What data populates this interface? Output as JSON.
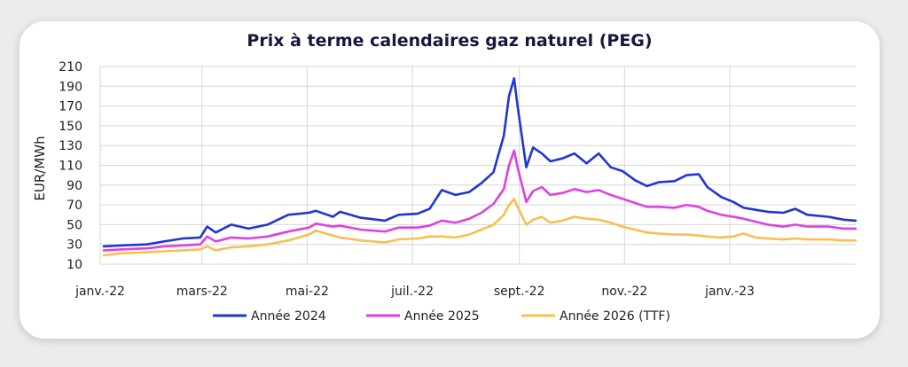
{
  "chart_data": {
    "type": "line",
    "title": "Prix à terme calendaires gaz naturel (PEG)",
    "ylabel": "EUR/MWh",
    "xlabel": "",
    "ylim": [
      10,
      210
    ],
    "yticks": [
      10,
      30,
      50,
      70,
      90,
      110,
      130,
      150,
      170,
      190,
      210
    ],
    "xlim": [
      "2022-01-01",
      "2023-03-15"
    ],
    "xticks": [
      {
        "label": "janv.-22",
        "date": "2022-01-01"
      },
      {
        "label": "mars-22",
        "date": "2022-03-01"
      },
      {
        "label": "mai-22",
        "date": "2022-05-01"
      },
      {
        "label": "juil.-22",
        "date": "2022-07-01"
      },
      {
        "label": "sept.-22",
        "date": "2022-09-01"
      },
      {
        "label": "nov.-22",
        "date": "2022-11-01"
      },
      {
        "label": "janv.-23",
        "date": "2023-01-01"
      }
    ],
    "grid": true,
    "legend_position": "bottom",
    "series": [
      {
        "name": "Année 2024",
        "color": "#1f35d4",
        "points": [
          [
            "2022-01-03",
            28
          ],
          [
            "2022-01-14",
            29
          ],
          [
            "2022-01-28",
            30
          ],
          [
            "2022-02-07",
            33
          ],
          [
            "2022-02-18",
            36
          ],
          [
            "2022-02-28",
            37
          ],
          [
            "2022-03-04",
            48
          ],
          [
            "2022-03-09",
            42
          ],
          [
            "2022-03-18",
            50
          ],
          [
            "2022-03-28",
            46
          ],
          [
            "2022-04-08",
            50
          ],
          [
            "2022-04-20",
            60
          ],
          [
            "2022-05-02",
            62
          ],
          [
            "2022-05-06",
            64
          ],
          [
            "2022-05-16",
            58
          ],
          [
            "2022-05-20",
            63
          ],
          [
            "2022-06-01",
            57
          ],
          [
            "2022-06-15",
            54
          ],
          [
            "2022-06-23",
            60
          ],
          [
            "2022-07-04",
            61
          ],
          [
            "2022-07-11",
            66
          ],
          [
            "2022-07-18",
            85
          ],
          [
            "2022-07-26",
            80
          ],
          [
            "2022-08-03",
            83
          ],
          [
            "2022-08-10",
            92
          ],
          [
            "2022-08-17",
            103
          ],
          [
            "2022-08-23",
            140
          ],
          [
            "2022-08-26",
            180
          ],
          [
            "2022-08-29",
            198
          ],
          [
            "2022-08-31",
            170
          ],
          [
            "2022-09-05",
            108
          ],
          [
            "2022-09-09",
            128
          ],
          [
            "2022-09-14",
            122
          ],
          [
            "2022-09-19",
            114
          ],
          [
            "2022-09-26",
            117
          ],
          [
            "2022-10-03",
            122
          ],
          [
            "2022-10-10",
            112
          ],
          [
            "2022-10-17",
            122
          ],
          [
            "2022-10-24",
            108
          ],
          [
            "2022-10-31",
            104
          ],
          [
            "2022-11-07",
            95
          ],
          [
            "2022-11-14",
            89
          ],
          [
            "2022-11-21",
            93
          ],
          [
            "2022-11-30",
            94
          ],
          [
            "2022-12-07",
            100
          ],
          [
            "2022-12-14",
            101
          ],
          [
            "2022-12-19",
            88
          ],
          [
            "2022-12-27",
            78
          ],
          [
            "2023-01-03",
            73
          ],
          [
            "2023-01-09",
            67
          ],
          [
            "2023-01-16",
            65
          ],
          [
            "2023-01-23",
            63
          ],
          [
            "2023-02-01",
            62
          ],
          [
            "2023-02-08",
            66
          ],
          [
            "2023-02-15",
            60
          ],
          [
            "2023-02-27",
            58
          ],
          [
            "2023-03-08",
            55
          ],
          [
            "2023-03-15",
            54
          ]
        ]
      },
      {
        "name": "Année 2025",
        "color": "#e040e0",
        "points": [
          [
            "2022-01-03",
            24
          ],
          [
            "2022-01-14",
            25
          ],
          [
            "2022-01-28",
            26
          ],
          [
            "2022-02-07",
            28
          ],
          [
            "2022-02-18",
            29
          ],
          [
            "2022-02-28",
            30
          ],
          [
            "2022-03-04",
            38
          ],
          [
            "2022-03-09",
            33
          ],
          [
            "2022-03-18",
            37
          ],
          [
            "2022-03-28",
            36
          ],
          [
            "2022-04-08",
            38
          ],
          [
            "2022-04-20",
            43
          ],
          [
            "2022-05-02",
            47
          ],
          [
            "2022-05-06",
            51
          ],
          [
            "2022-05-16",
            48
          ],
          [
            "2022-05-20",
            49
          ],
          [
            "2022-06-01",
            45
          ],
          [
            "2022-06-15",
            43
          ],
          [
            "2022-06-23",
            47
          ],
          [
            "2022-07-04",
            47
          ],
          [
            "2022-07-11",
            49
          ],
          [
            "2022-07-18",
            54
          ],
          [
            "2022-07-26",
            52
          ],
          [
            "2022-08-03",
            56
          ],
          [
            "2022-08-10",
            62
          ],
          [
            "2022-08-17",
            71
          ],
          [
            "2022-08-23",
            86
          ],
          [
            "2022-08-26",
            110
          ],
          [
            "2022-08-29",
            125
          ],
          [
            "2022-08-31",
            108
          ],
          [
            "2022-09-05",
            73
          ],
          [
            "2022-09-09",
            84
          ],
          [
            "2022-09-14",
            88
          ],
          [
            "2022-09-19",
            80
          ],
          [
            "2022-09-26",
            82
          ],
          [
            "2022-10-03",
            86
          ],
          [
            "2022-10-10",
            83
          ],
          [
            "2022-10-17",
            85
          ],
          [
            "2022-10-24",
            80
          ],
          [
            "2022-10-31",
            76
          ],
          [
            "2022-11-07",
            72
          ],
          [
            "2022-11-14",
            68
          ],
          [
            "2022-11-21",
            68
          ],
          [
            "2022-11-30",
            67
          ],
          [
            "2022-12-07",
            70
          ],
          [
            "2022-12-14",
            68
          ],
          [
            "2022-12-19",
            64
          ],
          [
            "2022-12-27",
            60
          ],
          [
            "2023-01-03",
            58
          ],
          [
            "2023-01-09",
            56
          ],
          [
            "2023-01-16",
            53
          ],
          [
            "2023-01-23",
            50
          ],
          [
            "2023-02-01",
            48
          ],
          [
            "2023-02-08",
            50
          ],
          [
            "2023-02-15",
            48
          ],
          [
            "2023-02-27",
            48
          ],
          [
            "2023-03-08",
            46
          ],
          [
            "2023-03-15",
            46
          ]
        ]
      },
      {
        "name": "Année 2026 (TTF)",
        "color": "#f7c04f",
        "points": [
          [
            "2022-01-03",
            19
          ],
          [
            "2022-01-14",
            21
          ],
          [
            "2022-01-28",
            22
          ],
          [
            "2022-02-07",
            23
          ],
          [
            "2022-02-18",
            24
          ],
          [
            "2022-02-28",
            25
          ],
          [
            "2022-03-04",
            28
          ],
          [
            "2022-03-09",
            24
          ],
          [
            "2022-03-18",
            27
          ],
          [
            "2022-03-28",
            28
          ],
          [
            "2022-04-08",
            30
          ],
          [
            "2022-04-20",
            34
          ],
          [
            "2022-05-02",
            40
          ],
          [
            "2022-05-06",
            44
          ],
          [
            "2022-05-16",
            39
          ],
          [
            "2022-05-20",
            37
          ],
          [
            "2022-06-01",
            34
          ],
          [
            "2022-06-15",
            32
          ],
          [
            "2022-06-23",
            35
          ],
          [
            "2022-07-04",
            36
          ],
          [
            "2022-07-11",
            38
          ],
          [
            "2022-07-18",
            38
          ],
          [
            "2022-07-26",
            37
          ],
          [
            "2022-08-03",
            40
          ],
          [
            "2022-08-10",
            45
          ],
          [
            "2022-08-17",
            50
          ],
          [
            "2022-08-23",
            60
          ],
          [
            "2022-08-26",
            70
          ],
          [
            "2022-08-29",
            76
          ],
          [
            "2022-08-31",
            68
          ],
          [
            "2022-09-05",
            50
          ],
          [
            "2022-09-09",
            55
          ],
          [
            "2022-09-14",
            58
          ],
          [
            "2022-09-19",
            52
          ],
          [
            "2022-09-26",
            54
          ],
          [
            "2022-10-03",
            58
          ],
          [
            "2022-10-10",
            56
          ],
          [
            "2022-10-17",
            55
          ],
          [
            "2022-10-24",
            52
          ],
          [
            "2022-10-31",
            48
          ],
          [
            "2022-11-07",
            45
          ],
          [
            "2022-11-14",
            42
          ],
          [
            "2022-11-21",
            41
          ],
          [
            "2022-11-30",
            40
          ],
          [
            "2022-12-07",
            40
          ],
          [
            "2022-12-14",
            39
          ],
          [
            "2022-12-19",
            38
          ],
          [
            "2022-12-27",
            37
          ],
          [
            "2023-01-03",
            38
          ],
          [
            "2023-01-09",
            41
          ],
          [
            "2023-01-16",
            37
          ],
          [
            "2023-01-23",
            36
          ],
          [
            "2023-02-01",
            35
          ],
          [
            "2023-02-08",
            36
          ],
          [
            "2023-02-15",
            35
          ],
          [
            "2023-02-27",
            35
          ],
          [
            "2023-03-08",
            34
          ],
          [
            "2023-03-15",
            34
          ]
        ]
      }
    ]
  }
}
